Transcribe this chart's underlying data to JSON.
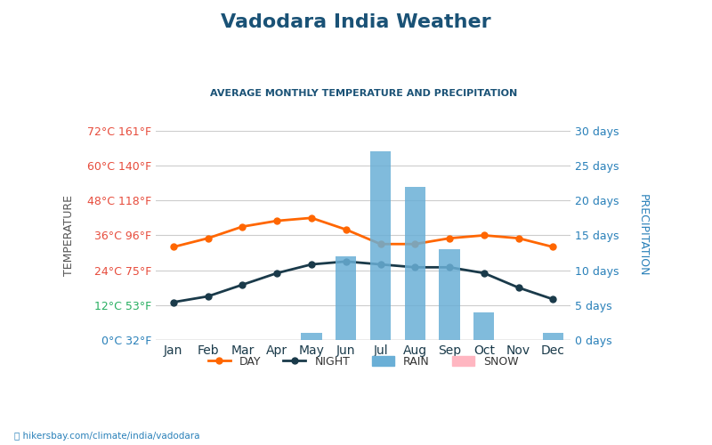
{
  "title": "Vadodara India Weather",
  "subtitle": "AVERAGE MONTHLY TEMPERATURE AND PRECIPITATION",
  "months": [
    "Jan",
    "Feb",
    "Mar",
    "Apr",
    "May",
    "Jun",
    "Jul",
    "Aug",
    "Sep",
    "Oct",
    "Nov",
    "Dec"
  ],
  "day_temps": [
    32,
    35,
    39,
    41,
    42,
    38,
    33,
    33,
    35,
    36,
    35,
    32
  ],
  "night_temps": [
    13,
    15,
    19,
    23,
    26,
    27,
    26,
    25,
    25,
    23,
    18,
    14
  ],
  "rain_days": [
    0,
    0,
    0,
    0,
    1,
    12,
    27,
    22,
    13,
    4,
    0,
    1
  ],
  "snow_days": [
    0,
    0,
    0,
    0,
    0,
    0,
    0,
    0,
    0,
    0,
    0,
    0
  ],
  "temp_left_ticks": [
    0,
    12,
    24,
    36,
    48,
    60,
    72
  ],
  "temp_left_labels": [
    "0°C 32°F",
    "12°C 53°F",
    "24°C 75°F",
    "36°C 96°F",
    "48°C 118°F",
    "60°C 140°F",
    "72°C 161°F"
  ],
  "precip_right_ticks": [
    0,
    5,
    10,
    15,
    20,
    25,
    30
  ],
  "precip_right_labels": [
    "0 days",
    "5 days",
    "10 days",
    "15 days",
    "20 days",
    "25 days",
    "30 days"
  ],
  "temp_ylim": [
    0,
    72
  ],
  "precip_ylim": [
    0,
    30
  ],
  "day_color": "#ff6600",
  "night_color": "#1a3a4a",
  "rain_color": "#6aafd6",
  "snow_color": "#ffb6c1",
  "title_color": "#1a5276",
  "subtitle_color": "#1a5276",
  "left_tick_color_blue": "#2980b9",
  "left_tick_color_green": "#27ae60",
  "left_tick_color_red": "#e74c3c",
  "right_tick_color": "#2980b9",
  "ylabel_left": "TEMPERATURE",
  "ylabel_right": "PRECIPITATION",
  "watermark": "hikersbay.com/climate/india/vadodara",
  "background_color": "#ffffff"
}
